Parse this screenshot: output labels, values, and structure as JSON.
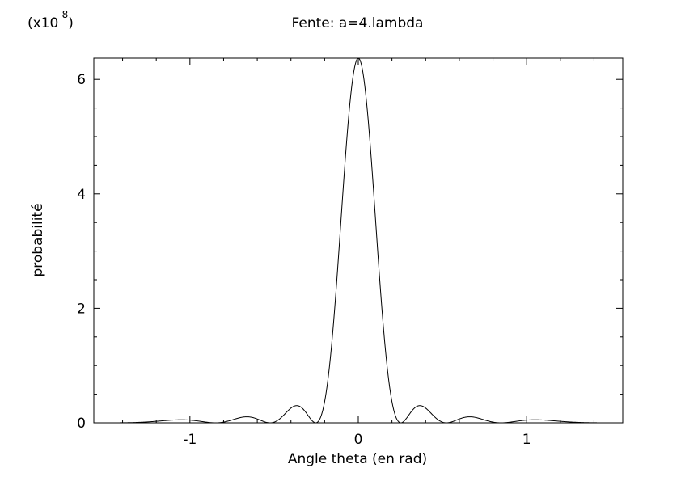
{
  "chart_data": {
    "type": "line",
    "title": "Fente: a=4.lambda",
    "xlabel": "Angle theta (en rad)",
    "ylabel": "probabilité",
    "y_scale_label": "(x10",
    "y_scale_exponent": "-8",
    "y_scale_close": ")",
    "xlim": [
      -1.5708,
      1.5708
    ],
    "ylim": [
      0,
      6.37
    ],
    "x_ticks": [
      -1,
      0,
      1
    ],
    "x_tick_labels": [
      "-1",
      "0",
      "1"
    ],
    "y_ticks": [
      0,
      2,
      4,
      6
    ],
    "y_tick_labels": [
      "0",
      "2",
      "4",
      "6"
    ],
    "grid": false,
    "line_color": "#000000",
    "series": [
      {
        "formula": "y = 6.37 * (sin(4*pi*sin(theta)) / (4*pi*sin(theta)))^2",
        "peak_value": 6.37,
        "x": [
          -1.5708,
          -1.1,
          -0.848,
          -0.66,
          -0.524,
          -0.37,
          -0.253,
          0,
          0.253,
          0.37,
          0.524,
          0.66,
          0.848,
          1.1,
          1.5708
        ],
        "values": [
          0.0,
          0.05,
          0.0,
          0.1,
          0.0,
          0.3,
          0.0,
          6.37,
          0.0,
          0.3,
          0.0,
          0.1,
          0.0,
          0.05,
          0.0
        ]
      }
    ]
  }
}
